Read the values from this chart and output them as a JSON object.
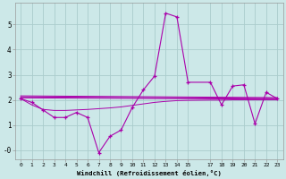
{
  "xlabel": "Windchill (Refroidissement éolien,°C)",
  "bg_color": "#cce8e8",
  "grid_color": "#aacccc",
  "line_color": "#aa00aa",
  "x_ticks": [
    0,
    1,
    2,
    3,
    4,
    5,
    6,
    7,
    8,
    9,
    10,
    11,
    12,
    13,
    14,
    15,
    17,
    18,
    19,
    20,
    21,
    22,
    23
  ],
  "ylim": [
    -0.35,
    5.85
  ],
  "xlim": [
    -0.5,
    23.5
  ],
  "series1_x": [
    0,
    1,
    2,
    3,
    4,
    5,
    6,
    7,
    8,
    9,
    10,
    11,
    12,
    13,
    14,
    15,
    17,
    18,
    19,
    20,
    21,
    22,
    23
  ],
  "series1_y": [
    2.05,
    1.9,
    1.6,
    1.3,
    1.3,
    1.5,
    1.3,
    -0.1,
    0.55,
    0.8,
    1.7,
    2.4,
    2.95,
    5.45,
    5.3,
    2.7,
    2.7,
    1.8,
    2.55,
    2.6,
    1.05,
    2.3,
    2.05
  ],
  "trend1_x": [
    0,
    1,
    2,
    3,
    4,
    5,
    6,
    7,
    8,
    9,
    10,
    11,
    12,
    13,
    14,
    15,
    17,
    18,
    19,
    20,
    21,
    22,
    23
  ],
  "trend1_y": [
    2.05,
    1.8,
    1.62,
    1.58,
    1.58,
    1.6,
    1.62,
    1.65,
    1.68,
    1.72,
    1.78,
    1.84,
    1.9,
    1.94,
    1.97,
    1.98,
    1.99,
    1.99,
    2.0,
    2.0,
    2.0,
    2.0,
    2.0
  ],
  "trend2_x": [
    0,
    23
  ],
  "trend2_y": [
    2.08,
    2.03
  ],
  "trend3_x": [
    0,
    23
  ],
  "trend3_y": [
    2.12,
    2.06
  ],
  "trend4_x": [
    0,
    23
  ],
  "trend4_y": [
    2.16,
    2.09
  ]
}
